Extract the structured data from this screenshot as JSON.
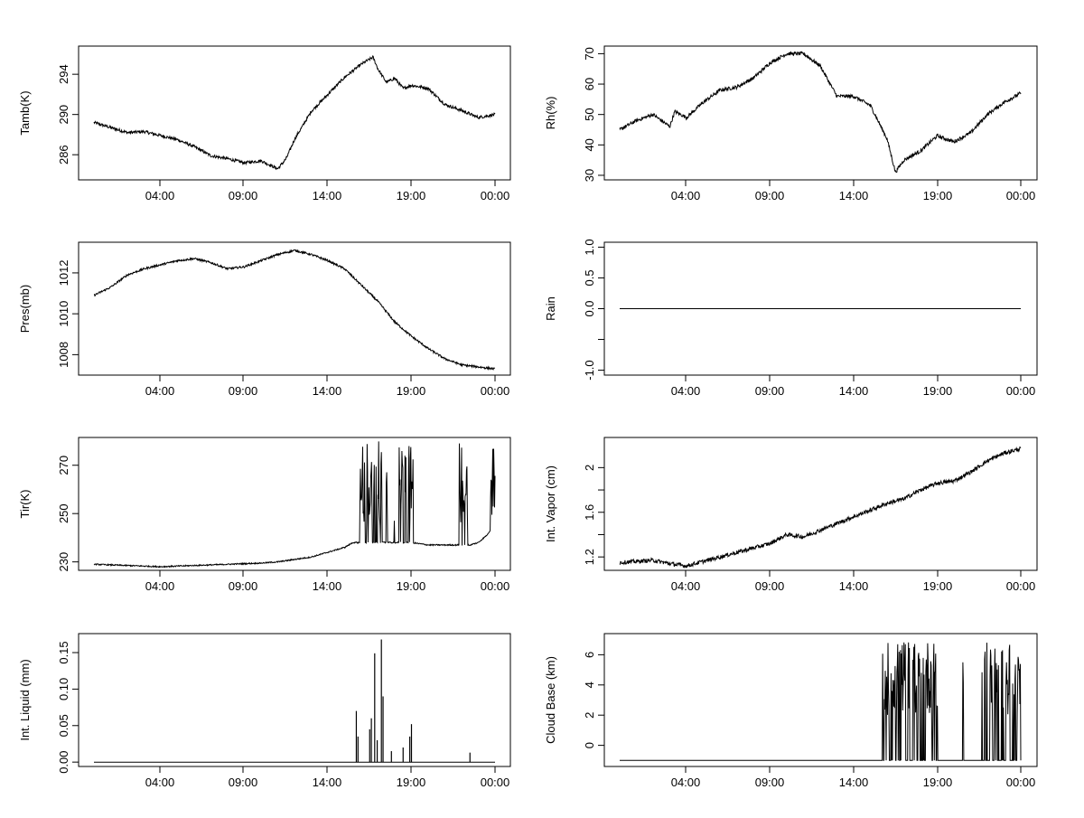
{
  "chart_data": [
    {
      "type": "line",
      "ylabel": "Tamb(K)",
      "x_ticks": [
        "04:00",
        "09:00",
        "14:00",
        "19:00",
        "00:00"
      ],
      "y_ticks": [
        286,
        290,
        294
      ],
      "ylim": [
        283.5,
        296.8
      ],
      "x_hours": [
        0.0,
        1.0,
        2.0,
        3.0,
        4.0,
        5.0,
        6.0,
        7.0,
        8.0,
        9.0,
        10.0,
        11.0,
        11.5,
        12.0,
        13.0,
        14.0,
        15.0,
        16.0,
        16.7,
        17.0,
        17.5,
        18.0,
        18.5,
        19.0,
        20.0,
        21.0,
        22.0,
        23.0,
        24.0
      ],
      "y": [
        289.2,
        288.7,
        288.2,
        288.3,
        287.9,
        287.5,
        286.8,
        285.9,
        285.6,
        285.2,
        285.4,
        284.6,
        285.6,
        287.5,
        290.3,
        292.0,
        293.7,
        295.0,
        295.7,
        294.5,
        293.2,
        293.6,
        292.6,
        292.9,
        292.6,
        291.0,
        290.4,
        289.7,
        290.0
      ],
      "noise": 0.15
    },
    {
      "type": "line",
      "ylabel": "Rh(%)",
      "x_ticks": [
        "04:00",
        "09:00",
        "14:00",
        "19:00",
        "00:00"
      ],
      "y_ticks": [
        30,
        40,
        50,
        60,
        70
      ],
      "ylim": [
        28.5,
        72.5
      ],
      "x_hours": [
        0.0,
        1.0,
        2.0,
        3.0,
        3.3,
        4.0,
        5.0,
        6.0,
        7.0,
        8.0,
        9.0,
        10.0,
        11.0,
        12.0,
        13.0,
        14.0,
        15.0,
        16.0,
        16.5,
        17.0,
        18.0,
        19.0,
        20.0,
        21.0,
        22.0,
        23.0,
        24.0
      ],
      "y": [
        45,
        48,
        50,
        46,
        51,
        49,
        54,
        58,
        59,
        62,
        67,
        70,
        70,
        66,
        56,
        56,
        53,
        42,
        31,
        35,
        38,
        43,
        41,
        44,
        50,
        54,
        57
      ],
      "noise": 0.6
    },
    {
      "type": "line",
      "ylabel": "Pres(mb)",
      "x_ticks": [
        "04:00",
        "09:00",
        "14:00",
        "19:00",
        "00:00"
      ],
      "y_ticks": [
        1008,
        1010,
        1012
      ],
      "ylim": [
        1007.0,
        1013.5
      ],
      "x_hours": [
        0.0,
        1.0,
        2.0,
        3.0,
        4.0,
        5.0,
        6.0,
        7.0,
        8.0,
        9.0,
        10.0,
        11.0,
        12.0,
        13.0,
        14.0,
        15.0,
        16.0,
        17.0,
        18.0,
        19.0,
        20.0,
        21.0,
        22.0,
        23.0,
        24.0
      ],
      "y": [
        1010.9,
        1011.3,
        1011.9,
        1012.2,
        1012.4,
        1012.6,
        1012.7,
        1012.5,
        1012.2,
        1012.3,
        1012.6,
        1012.9,
        1013.1,
        1012.9,
        1012.6,
        1012.2,
        1011.4,
        1010.6,
        1009.6,
        1008.9,
        1008.3,
        1007.8,
        1007.5,
        1007.4,
        1007.3
      ],
      "noise": 0.05
    },
    {
      "type": "line",
      "ylabel": "Rain",
      "x_ticks": [
        "04:00",
        "09:00",
        "14:00",
        "19:00",
        "00:00"
      ],
      "y_ticks": [
        -1.0,
        -0.5,
        0.0,
        0.5,
        1.0
      ],
      "y_tick_labels": [
        "-1.0",
        "",
        "0.0",
        "0.5",
        "1.0"
      ],
      "ylim": [
        -1.08,
        1.08
      ],
      "x_hours": [
        0.0,
        24.0
      ],
      "y": [
        0,
        0
      ],
      "noise": 0
    },
    {
      "type": "line",
      "ylabel": "Tir(K)",
      "x_ticks": [
        "04:00",
        "09:00",
        "14:00",
        "19:00",
        "00:00"
      ],
      "y_ticks": [
        230,
        250,
        270
      ],
      "ylim": [
        226.5,
        281.5
      ],
      "x_hours": [
        0.0,
        2.0,
        4.0,
        6.0,
        8.0,
        10.0,
        11.0,
        12.0,
        13.0,
        14.0,
        15.0,
        15.5,
        16.0,
        17.0,
        18.0,
        19.0,
        20.0,
        21.0,
        22.0,
        22.5,
        23.0,
        23.5,
        24.0
      ],
      "y": [
        229,
        228.5,
        228,
        228.5,
        229,
        229.5,
        230,
        231,
        232,
        234,
        236,
        238,
        238,
        238,
        238,
        238,
        237,
        237,
        237,
        237,
        238,
        241,
        246
      ],
      "noise": 0.25,
      "spike_windows": [
        [
          15.6,
          16.6,
          0.55
        ],
        [
          16.6,
          17.6,
          0.6
        ],
        [
          17.8,
          19.1,
          0.6
        ],
        [
          21.8,
          22.6,
          0.6
        ],
        [
          23.5,
          24.0,
          0.3
        ]
      ],
      "spike_range": [
        245,
        280
      ]
    },
    {
      "type": "line",
      "ylabel": "Int. Vapor (cm)",
      "x_ticks": [
        "04:00",
        "09:00",
        "14:00",
        "19:00",
        "00:00"
      ],
      "y_ticks": [
        1.2,
        1.6,
        2.0
      ],
      "y_ticks_minor": [
        1.4,
        1.8
      ],
      "ylim": [
        1.08,
        2.27
      ],
      "x_hours": [
        0.0,
        1.0,
        2.0,
        3.0,
        4.0,
        5.0,
        6.0,
        7.0,
        8.0,
        9.0,
        10.0,
        11.0,
        12.0,
        13.0,
        14.0,
        15.0,
        16.0,
        17.0,
        18.0,
        19.0,
        20.0,
        21.0,
        22.0,
        23.0,
        24.0
      ],
      "y": [
        1.15,
        1.16,
        1.17,
        1.14,
        1.12,
        1.16,
        1.2,
        1.24,
        1.28,
        1.32,
        1.4,
        1.38,
        1.44,
        1.5,
        1.56,
        1.62,
        1.68,
        1.72,
        1.8,
        1.86,
        1.88,
        1.96,
        2.06,
        2.13,
        2.17
      ],
      "noise": 0.018
    },
    {
      "type": "line",
      "ylabel": "Int. Liquid (mm)",
      "x_ticks": [
        "04:00",
        "09:00",
        "14:00",
        "19:00",
        "00:00"
      ],
      "y_ticks": [
        0.0,
        0.05,
        0.1,
        0.15
      ],
      "y_tick_labels": [
        "0.00",
        "0.05",
        "0.10",
        "0.15"
      ],
      "ylim": [
        -0.006,
        0.176
      ],
      "x_hours": [
        0.0,
        24.0
      ],
      "y": [
        0,
        0
      ],
      "noise": 0,
      "spikes": [
        [
          15.7,
          0.07
        ],
        [
          15.8,
          0.035
        ],
        [
          16.5,
          0.045
        ],
        [
          16.6,
          0.06
        ],
        [
          16.8,
          0.149
        ],
        [
          16.95,
          0.03
        ],
        [
          17.2,
          0.168
        ],
        [
          17.3,
          0.09
        ],
        [
          17.8,
          0.015
        ],
        [
          18.5,
          0.02
        ],
        [
          18.9,
          0.035
        ],
        [
          19.0,
          0.052
        ],
        [
          22.5,
          0.013
        ]
      ]
    },
    {
      "type": "line",
      "ylabel": "Cloud Base (km)",
      "x_ticks": [
        "04:00",
        "09:00",
        "14:00",
        "19:00",
        "00:00"
      ],
      "y_ticks": [
        0,
        2,
        4,
        6
      ],
      "ylim": [
        -1.4,
        7.4
      ],
      "x_hours": [
        0.0,
        24.0
      ],
      "y": [
        -1,
        -1
      ],
      "noise": 0,
      "spike_windows": [
        [
          15.6,
          19.1,
          0.9
        ],
        [
          20.5,
          20.6,
          1.0
        ],
        [
          21.6,
          24.0,
          0.8
        ]
      ],
      "spike_range": [
        2,
        7
      ]
    }
  ]
}
